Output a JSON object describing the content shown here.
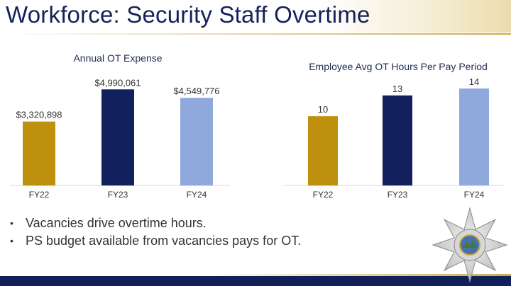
{
  "slide": {
    "title": "Workforce: Security Staff Overtime"
  },
  "bullets": [
    "Vacancies drive overtime hours.",
    "PS budget available from vacancies pays for OT."
  ],
  "badge": {
    "icon": "sheriff-star-badge-icon"
  },
  "colors": {
    "title": "#14215a",
    "gold": "#bf8f0e",
    "navy": "#13205e",
    "lightblue": "#8fa9dc",
    "footer": "#12205a"
  },
  "chart_data": [
    {
      "type": "bar",
      "title": "Annual OT Expense",
      "categories": [
        "FY22",
        "FY23",
        "FY24"
      ],
      "values": [
        3320898,
        4990061,
        4549776
      ],
      "data_labels": [
        "$3,320,898",
        "$4,990,061",
        "$4,549,776"
      ],
      "bar_colors": [
        "#bf8f0e",
        "#13205e",
        "#8fa9dc"
      ],
      "ylim": [
        0,
        5000000
      ],
      "xlabel": "",
      "ylabel": "",
      "grid": false
    },
    {
      "type": "bar",
      "title": "Employee Avg OT Hours Per Pay Period",
      "categories": [
        "FY22",
        "FY23",
        "FY24"
      ],
      "values": [
        10,
        13,
        14
      ],
      "data_labels": [
        "10",
        "13",
        "14"
      ],
      "bar_colors": [
        "#bf8f0e",
        "#13205e",
        "#8fa9dc"
      ],
      "ylim": [
        0,
        14
      ],
      "xlabel": "",
      "ylabel": "",
      "grid": false
    }
  ]
}
